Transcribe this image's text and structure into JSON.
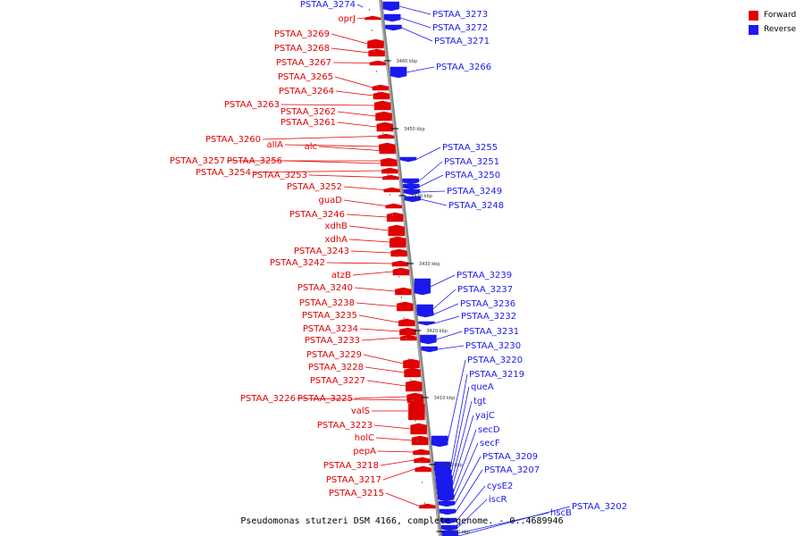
{
  "legend": {
    "forward_label": "Forward",
    "reverse_label": "Reverse",
    "forward_color": "#e00000",
    "reverse_color": "#1a1aee"
  },
  "caption": "Pseudomonas stutzeri DSM 4166, complete genome. - 0..4689946",
  "ticks": [
    "3460 kbp",
    "3450 kbp",
    "3440 kbp",
    "3430 kbp",
    "3420 kbp",
    "3410 kbp",
    "3400 kbp",
    "3390 kbp"
  ],
  "forward_genes": [
    "PSTAA_3274",
    "oprJ",
    "PSTAA_3269",
    "PSTAA_3268",
    "PSTAA_3267",
    "PSTAA_3265",
    "PSTAA_3264",
    "PSTAA_3263",
    "PSTAA_3262",
    "PSTAA_3261",
    "PSTAA_3260",
    "allA",
    "alc",
    "PSTAA_3257",
    "PSTAA_3256",
    "PSTAA_3254",
    "PSTAA_3253",
    "PSTAA_3252",
    "guaD",
    "PSTAA_3246",
    "xdhB",
    "xdhA",
    "PSTAA_3243",
    "PSTAA_3242",
    "atzB",
    "PSTAA_3240",
    "PSTAA_3238",
    "PSTAA_3235",
    "PSTAA_3234",
    "PSTAA_3233",
    "PSTAA_3229",
    "PSTAA_3228",
    "PSTAA_3227",
    "PSTAA_3226",
    "PSTAA_3225",
    "valS",
    "PSTAA_3223",
    "holC",
    "pepA",
    "PSTAA_3218",
    "PSTAA_3217",
    "PSTAA_3215"
  ],
  "reverse_genes": [
    "PSTAA_3273",
    "PSTAA_3272",
    "PSTAA_3271",
    "PSTAA_3266",
    "PSTAA_3255",
    "PSTAA_3251",
    "PSTAA_3250",
    "PSTAA_3249",
    "PSTAA_3248",
    "PSTAA_3239",
    "PSTAA_3237",
    "PSTAA_3236",
    "PSTAA_3232",
    "PSTAA_3231",
    "PSTAA_3230",
    "PSTAA_3220",
    "PSTAA_3219",
    "queA",
    "tgt",
    "yajC",
    "secD",
    "secF",
    "PSTAA_3209",
    "PSTAA_3207",
    "cysE2",
    "iscR",
    "hscB",
    "PSTAA_3202"
  ]
}
